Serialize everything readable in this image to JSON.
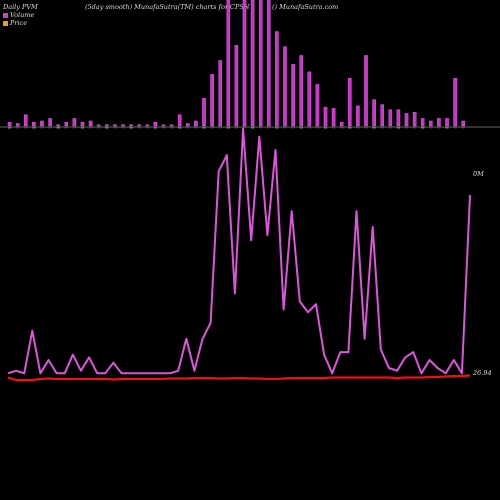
{
  "header": {
    "left": "Daily PVM",
    "center_left": "(5day smooth) MunafaSutra(TM) charts for CPSN",
    "center_right": "() MunafaSutra.com"
  },
  "legend": [
    {
      "label": "Volume",
      "color": "#cc44cc"
    },
    {
      "label": "Price",
      "color": "#e8a020"
    }
  ],
  "chart_data": {
    "type": "bar+line",
    "price_label_top": "0M",
    "price_label_bottom": "26.94",
    "colors": {
      "volume_bar": "#cc33cc",
      "volume_negative": "#44aa44",
      "volume_line": "#dd55dd",
      "price_line": "#ee1111",
      "zero_line": "#888888"
    },
    "volume_bars": [
      3,
      2,
      9,
      3,
      4,
      6,
      1,
      3,
      6,
      3,
      4,
      1,
      1,
      1,
      1,
      1,
      1,
      1,
      3,
      1,
      1,
      9,
      2,
      4,
      22,
      41,
      52,
      100,
      64,
      100,
      100,
      100,
      100,
      75,
      63,
      49,
      56,
      43,
      33,
      15,
      14,
      3,
      38,
      16,
      56,
      21,
      17,
      13,
      13,
      10,
      11,
      6,
      4,
      6,
      6,
      38,
      4
    ],
    "volume_line": [
      1,
      2,
      1,
      17,
      1,
      6,
      1,
      1,
      8,
      2,
      7,
      1,
      1,
      5,
      1,
      1,
      1,
      1,
      1,
      1,
      1,
      2,
      14,
      2,
      14,
      20,
      77,
      83,
      31,
      93,
      51,
      90,
      53,
      85,
      25,
      62,
      28,
      24,
      27,
      8,
      1,
      9,
      9,
      62,
      14,
      56,
      10,
      3,
      2,
      7,
      9,
      1,
      6,
      3,
      1,
      6,
      1,
      68
    ],
    "price_line": [
      0.5,
      0.0,
      0.0,
      0.0,
      0.2,
      0.3,
      0.2,
      0.2,
      0.2,
      0.2,
      0.2,
      0.2,
      0.2,
      0.1,
      0.2,
      0.2,
      0.2,
      0.2,
      0.2,
      0.2,
      0.3,
      0.3,
      0.3,
      0.4,
      0.4,
      0.4,
      0.3,
      0.3,
      0.4,
      0.4,
      0.3,
      0.3,
      0.2,
      0.2,
      0.3,
      0.4,
      0.4,
      0.4,
      0.4,
      0.4,
      0.5,
      0.5,
      0.5,
      0.5,
      0.5,
      0.5,
      0.5,
      0.5,
      0.4,
      0.5,
      0.5,
      0.5,
      0.6,
      0.6,
      0.7,
      0.8,
      0.8,
      0.9
    ]
  }
}
